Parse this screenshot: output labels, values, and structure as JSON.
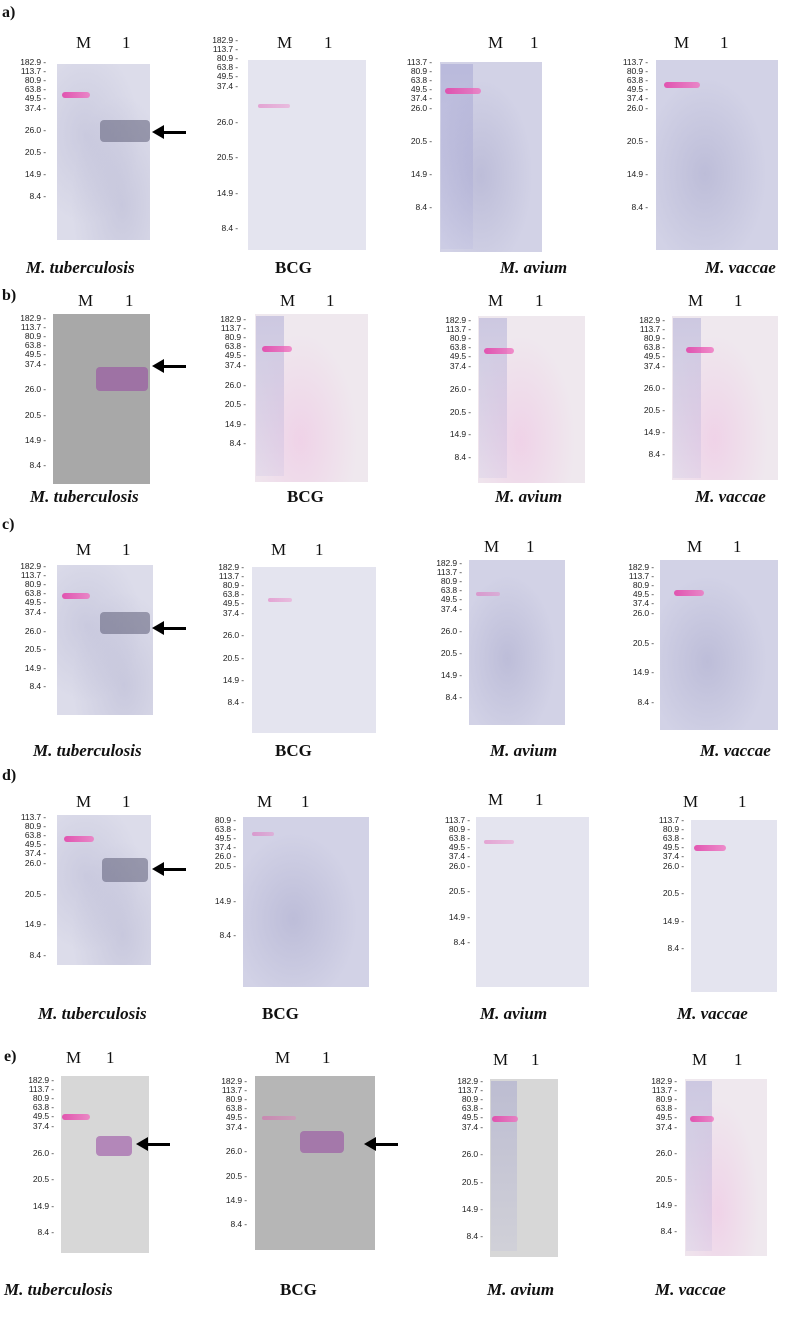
{
  "figure": {
    "lane_labels": {
      "marker": "M",
      "sample": "1"
    },
    "captions": [
      "M. tuberculosis",
      "BCG",
      "M. avium",
      "M. vaccae"
    ],
    "rows": [
      {
        "label": "a)",
        "panels": [
          {
            "mw": [
              "182.9",
              "113.7",
              "80.9",
              "63.8",
              "49.5",
              "37.4",
              "26.0",
              "20.5",
              "14.9",
              "8.4"
            ]
          },
          {
            "mw": [
              "182.9",
              "113.7",
              "80.9",
              "63.8",
              "49.5",
              "37.4",
              "26.0",
              "20.5",
              "14.9",
              "8.4"
            ]
          },
          {
            "mw": [
              "113.7",
              "80.9",
              "63.8",
              "49.5",
              "37.4",
              "26.0",
              "20.5",
              "14.9",
              "8.4"
            ]
          },
          {
            "mw": [
              "113.7",
              "80.9",
              "63.8",
              "49.5",
              "37.4",
              "26.0",
              "20.5",
              "14.9",
              "8.4"
            ]
          }
        ]
      },
      {
        "label": "b)",
        "panels": [
          {
            "mw": [
              "182.9",
              "113.7",
              "80.9",
              "63.8",
              "49.5",
              "37.4",
              "26.0",
              "20.5",
              "14.9",
              "8.4"
            ]
          },
          {
            "mw": [
              "182.9",
              "113.7",
              "80.9",
              "63.8",
              "49.5",
              "37.4",
              "26.0",
              "20.5",
              "14.9",
              "8.4"
            ]
          },
          {
            "mw": [
              "182.9",
              "113.7",
              "80.9",
              "63.8",
              "49.5",
              "37.4",
              "26.0",
              "20.5",
              "14.9",
              "8.4"
            ]
          },
          {
            "mw": [
              "182.9",
              "113.7",
              "80.9",
              "63.8",
              "49.5",
              "37.4",
              "26.0",
              "20.5",
              "14.9",
              "8.4"
            ]
          }
        ]
      },
      {
        "label": "c)",
        "panels": [
          {
            "mw": [
              "182.9",
              "113.7",
              "80.9",
              "63.8",
              "49.5",
              "37.4",
              "26.0",
              "20.5",
              "14.9",
              "8.4"
            ]
          },
          {
            "mw": [
              "182.9",
              "113.7",
              "80.9",
              "63.8",
              "49.5",
              "37.4",
              "26.0",
              "20.5",
              "14.9",
              "8.4"
            ]
          },
          {
            "mw": [
              "182.9",
              "113.7",
              "80.9",
              "63.8",
              "49.5",
              "37.4",
              "26.0",
              "20.5",
              "14.9",
              "8.4"
            ]
          },
          {
            "mw": [
              "182.9",
              "113.7",
              "80.9",
              "49.5",
              "37.4",
              "26.0",
              "20.5",
              "14.9",
              "8.4"
            ]
          }
        ]
      },
      {
        "label": "d)",
        "panels": [
          {
            "mw": [
              "113.7",
              "80.9",
              "63.8",
              "49.5",
              "37.4",
              "26.0",
              "20.5",
              "14.9",
              "8.4"
            ]
          },
          {
            "mw": [
              "80.9",
              "63.8",
              "49.5",
              "37.4",
              "26.0",
              "20.5",
              "14.9",
              "8.4"
            ]
          },
          {
            "mw": [
              "113.7",
              "80.9",
              "63.8",
              "49.5",
              "37.4",
              "26.0",
              "20.5",
              "14.9",
              "8.4"
            ]
          },
          {
            "mw": [
              "113.7",
              "80.9",
              "63.8",
              "49.5",
              "37.4",
              "26.0",
              "20.5",
              "14.9",
              "8.4"
            ]
          }
        ]
      },
      {
        "label": "e)",
        "panels": [
          {
            "mw": [
              "182.9",
              "113.7",
              "80.9",
              "63.8",
              "49.5",
              "37.4",
              "26.0",
              "20.5",
              "14.9",
              "8.4"
            ]
          },
          {
            "mw": [
              "182.9",
              "113.7",
              "80.9",
              "63.8",
              "49.5",
              "37.4",
              "26.0",
              "20.5",
              "14.9",
              "8.4"
            ]
          },
          {
            "mw": [
              "182.9",
              "113.7",
              "80.9",
              "63.8",
              "49.5",
              "37.4",
              "26.0",
              "20.5",
              "14.9",
              "8.4"
            ]
          },
          {
            "mw": [
              "182.9",
              "113.7",
              "80.9",
              "63.8",
              "49.5",
              "37.4",
              "26.0",
              "20.5",
              "14.9",
              "8.4"
            ]
          }
        ]
      }
    ]
  }
}
